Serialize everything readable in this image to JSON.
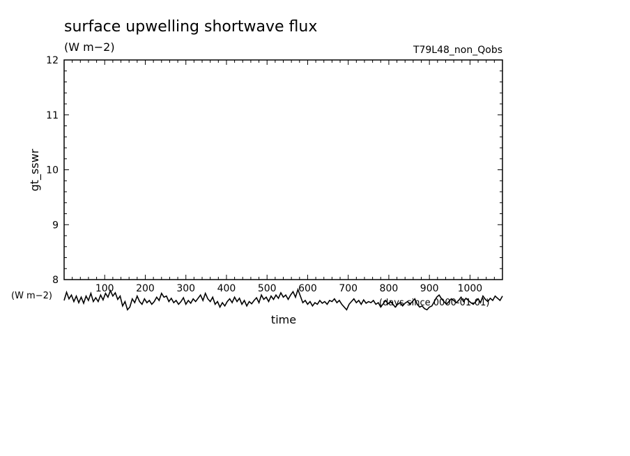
{
  "chart_data": {
    "type": "line",
    "title": "surface upwelling shortwave flux",
    "units": "(W m−2)",
    "run_label": "T79L48_non_Qobs",
    "ylabel": "gt_sswr",
    "y_units": "(W m−2)",
    "xlabel": "time",
    "x_units": "(days since 0000-01-01)",
    "xlim": [
      0,
      1080
    ],
    "ylim": [
      8,
      12
    ],
    "x_ticks": [
      "100",
      "200",
      "300",
      "400",
      "500",
      "600",
      "700",
      "800",
      "900",
      "1000"
    ],
    "y_ticks": [
      "8",
      "9",
      "10",
      "11",
      "12"
    ],
    "grid": false,
    "series": [
      {
        "values": [
          [
            0,
            7.62
          ],
          [
            6,
            7.77
          ],
          [
            12,
            7.65
          ],
          [
            18,
            7.72
          ],
          [
            24,
            7.6
          ],
          [
            30,
            7.7
          ],
          [
            36,
            7.58
          ],
          [
            42,
            7.68
          ],
          [
            48,
            7.57
          ],
          [
            54,
            7.7
          ],
          [
            60,
            7.62
          ],
          [
            66,
            7.75
          ],
          [
            72,
            7.6
          ],
          [
            78,
            7.67
          ],
          [
            84,
            7.6
          ],
          [
            90,
            7.72
          ],
          [
            96,
            7.63
          ],
          [
            102,
            7.75
          ],
          [
            108,
            7.68
          ],
          [
            114,
            7.8
          ],
          [
            120,
            7.7
          ],
          [
            126,
            7.76
          ],
          [
            132,
            7.64
          ],
          [
            138,
            7.7
          ],
          [
            144,
            7.52
          ],
          [
            150,
            7.6
          ],
          [
            156,
            7.45
          ],
          [
            162,
            7.5
          ],
          [
            168,
            7.65
          ],
          [
            174,
            7.58
          ],
          [
            180,
            7.7
          ],
          [
            186,
            7.6
          ],
          [
            192,
            7.55
          ],
          [
            198,
            7.65
          ],
          [
            204,
            7.58
          ],
          [
            210,
            7.62
          ],
          [
            216,
            7.55
          ],
          [
            222,
            7.6
          ],
          [
            228,
            7.68
          ],
          [
            234,
            7.62
          ],
          [
            240,
            7.75
          ],
          [
            246,
            7.68
          ],
          [
            252,
            7.7
          ],
          [
            258,
            7.6
          ],
          [
            264,
            7.66
          ],
          [
            270,
            7.58
          ],
          [
            276,
            7.62
          ],
          [
            282,
            7.55
          ],
          [
            288,
            7.6
          ],
          [
            294,
            7.67
          ],
          [
            300,
            7.55
          ],
          [
            306,
            7.62
          ],
          [
            312,
            7.57
          ],
          [
            318,
            7.65
          ],
          [
            324,
            7.6
          ],
          [
            330,
            7.66
          ],
          [
            336,
            7.72
          ],
          [
            342,
            7.62
          ],
          [
            348,
            7.75
          ],
          [
            354,
            7.65
          ],
          [
            360,
            7.6
          ],
          [
            366,
            7.68
          ],
          [
            372,
            7.55
          ],
          [
            378,
            7.6
          ],
          [
            384,
            7.5
          ],
          [
            390,
            7.58
          ],
          [
            396,
            7.52
          ],
          [
            402,
            7.6
          ],
          [
            408,
            7.65
          ],
          [
            414,
            7.58
          ],
          [
            420,
            7.68
          ],
          [
            426,
            7.6
          ],
          [
            432,
            7.66
          ],
          [
            438,
            7.55
          ],
          [
            444,
            7.62
          ],
          [
            450,
            7.52
          ],
          [
            456,
            7.6
          ],
          [
            462,
            7.56
          ],
          [
            468,
            7.62
          ],
          [
            474,
            7.67
          ],
          [
            480,
            7.58
          ],
          [
            486,
            7.72
          ],
          [
            492,
            7.64
          ],
          [
            498,
            7.68
          ],
          [
            504,
            7.6
          ],
          [
            510,
            7.7
          ],
          [
            516,
            7.64
          ],
          [
            522,
            7.72
          ],
          [
            528,
            7.66
          ],
          [
            534,
            7.76
          ],
          [
            540,
            7.68
          ],
          [
            546,
            7.72
          ],
          [
            552,
            7.64
          ],
          [
            558,
            7.72
          ],
          [
            564,
            7.78
          ],
          [
            570,
            7.68
          ],
          [
            576,
            7.82
          ],
          [
            582,
            7.7
          ],
          [
            588,
            7.58
          ],
          [
            594,
            7.62
          ],
          [
            600,
            7.55
          ],
          [
            606,
            7.6
          ],
          [
            612,
            7.52
          ],
          [
            618,
            7.58
          ],
          [
            624,
            7.55
          ],
          [
            630,
            7.62
          ],
          [
            636,
            7.57
          ],
          [
            642,
            7.6
          ],
          [
            648,
            7.55
          ],
          [
            654,
            7.62
          ],
          [
            660,
            7.6
          ],
          [
            666,
            7.65
          ],
          [
            672,
            7.58
          ],
          [
            678,
            7.62
          ],
          [
            684,
            7.55
          ],
          [
            690,
            7.5
          ],
          [
            696,
            7.45
          ],
          [
            702,
            7.55
          ],
          [
            708,
            7.6
          ],
          [
            714,
            7.65
          ],
          [
            720,
            7.58
          ],
          [
            726,
            7.62
          ],
          [
            732,
            7.55
          ],
          [
            738,
            7.63
          ],
          [
            744,
            7.57
          ],
          [
            750,
            7.6
          ],
          [
            756,
            7.58
          ],
          [
            762,
            7.62
          ],
          [
            768,
            7.55
          ],
          [
            774,
            7.58
          ],
          [
            780,
            7.5
          ],
          [
            786,
            7.56
          ],
          [
            792,
            7.62
          ],
          [
            798,
            7.56
          ],
          [
            804,
            7.6
          ],
          [
            810,
            7.55
          ],
          [
            816,
            7.5
          ],
          [
            822,
            7.55
          ],
          [
            828,
            7.58
          ],
          [
            834,
            7.52
          ],
          [
            840,
            7.57
          ],
          [
            846,
            7.6
          ],
          [
            852,
            7.55
          ],
          [
            858,
            7.6
          ],
          [
            864,
            7.65
          ],
          [
            870,
            7.55
          ],
          [
            876,
            7.5
          ],
          [
            882,
            7.52
          ],
          [
            888,
            7.47
          ],
          [
            894,
            7.45
          ],
          [
            900,
            7.5
          ],
          [
            906,
            7.52
          ],
          [
            912,
            7.6
          ],
          [
            918,
            7.68
          ],
          [
            924,
            7.72
          ],
          [
            930,
            7.65
          ],
          [
            936,
            7.6
          ],
          [
            942,
            7.55
          ],
          [
            948,
            7.6
          ],
          [
            954,
            7.65
          ],
          [
            960,
            7.62
          ],
          [
            966,
            7.58
          ],
          [
            972,
            7.62
          ],
          [
            978,
            7.68
          ],
          [
            984,
            7.6
          ],
          [
            990,
            7.66
          ],
          [
            996,
            7.62
          ],
          [
            1002,
            7.58
          ],
          [
            1008,
            7.55
          ],
          [
            1014,
            7.6
          ],
          [
            1020,
            7.65
          ],
          [
            1026,
            7.58
          ],
          [
            1032,
            7.7
          ],
          [
            1038,
            7.64
          ],
          [
            1044,
            7.6
          ],
          [
            1050,
            7.66
          ],
          [
            1056,
            7.62
          ],
          [
            1062,
            7.7
          ],
          [
            1068,
            7.66
          ],
          [
            1074,
            7.62
          ],
          [
            1080,
            7.7
          ]
        ]
      }
    ]
  }
}
